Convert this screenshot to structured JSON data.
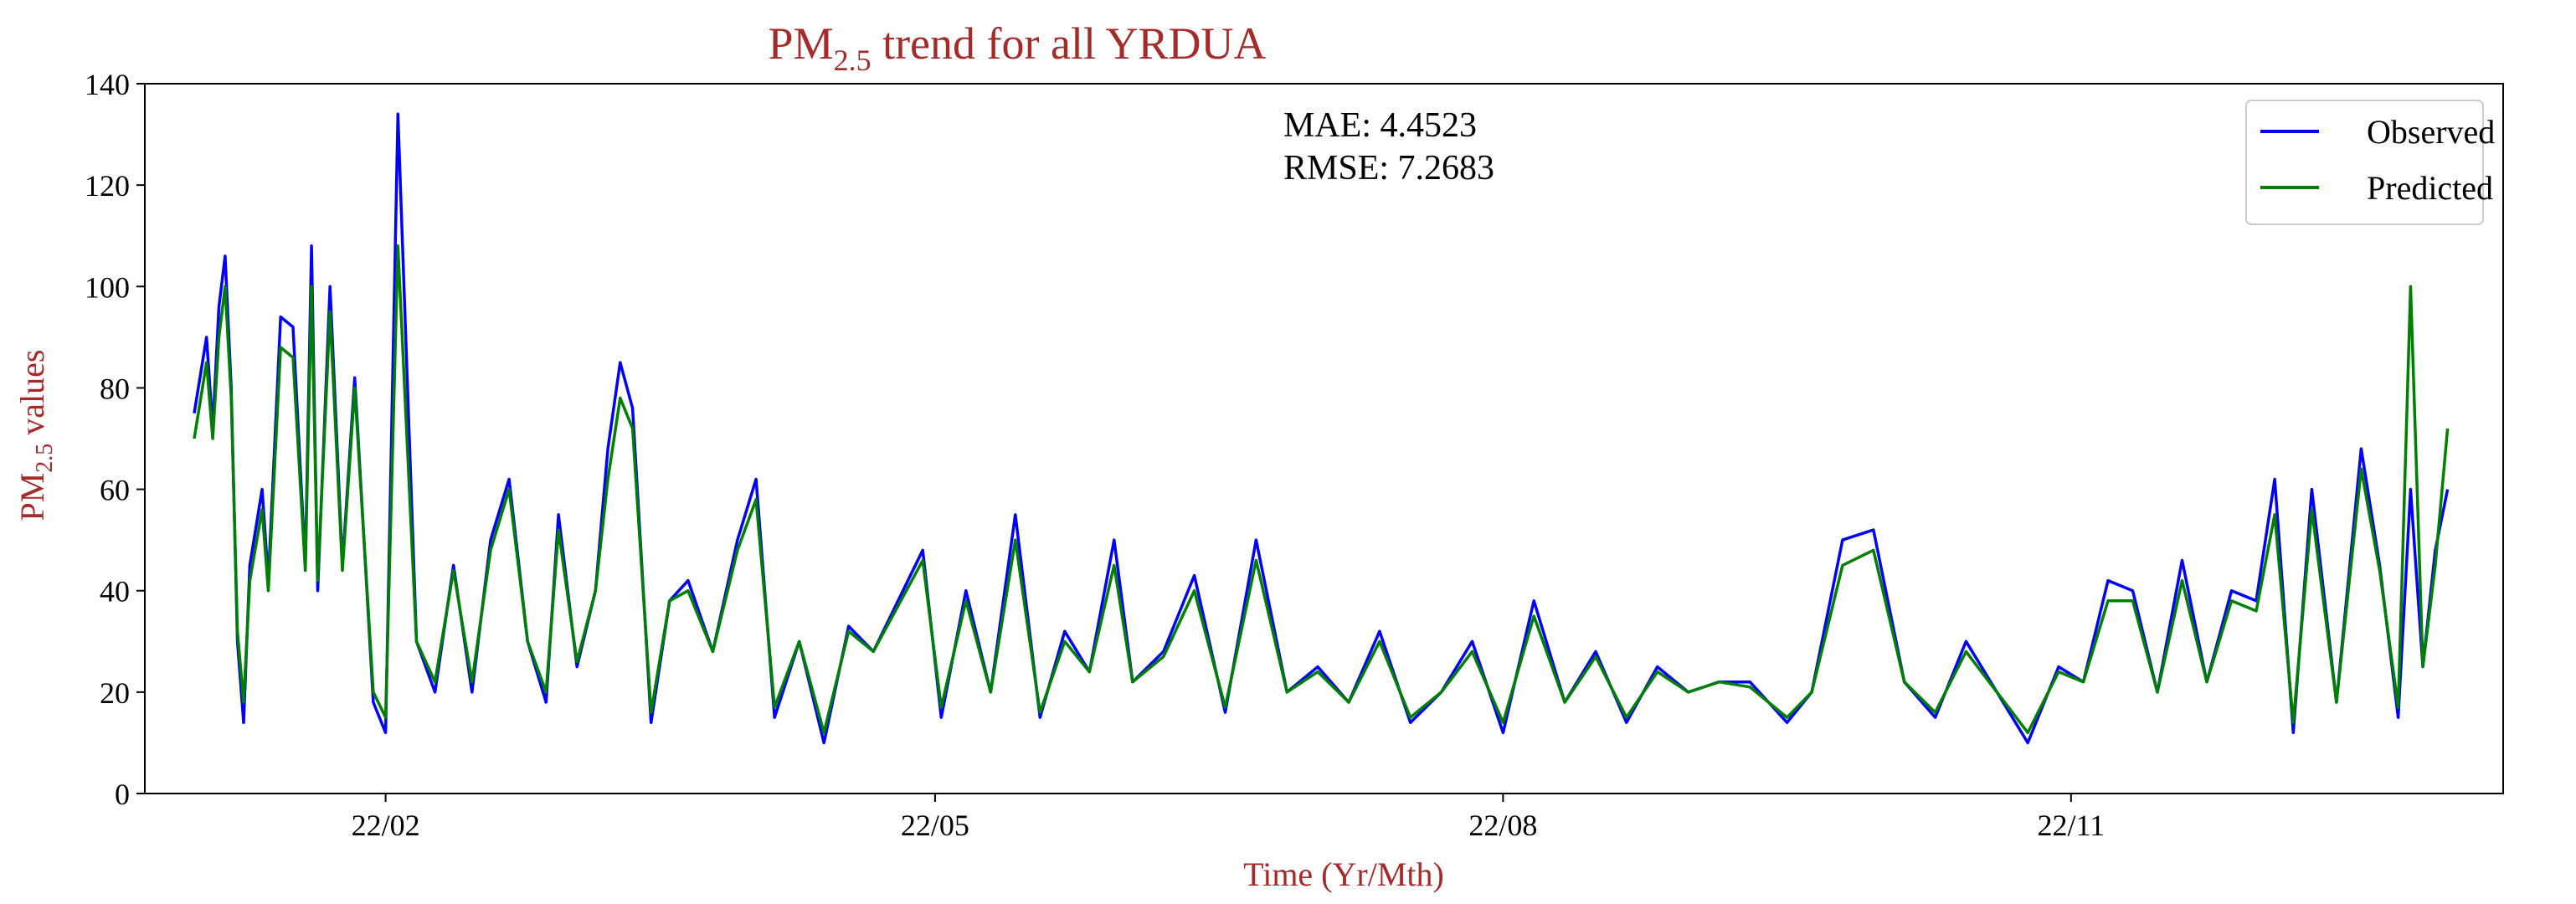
{
  "chart_data": {
    "type": "line",
    "title": {
      "main": "PM",
      "sub": "2.5",
      "rest": " trend for all YRDUA"
    },
    "xlabel": "Time (Yr/Mth)",
    "ylabel": {
      "main": "PM",
      "sub": "2.5",
      "rest": " values"
    },
    "x_range": [
      "2021-12-24",
      "2023-01-10"
    ],
    "ylim": [
      0,
      140
    ],
    "x_ticks": [
      {
        "date": "2022-02-01",
        "label": "22/02"
      },
      {
        "date": "2022-05-01",
        "label": "22/05"
      },
      {
        "date": "2022-08-01",
        "label": "22/08"
      },
      {
        "date": "2022-11-01",
        "label": "22/11"
      }
    ],
    "y_ticks": [
      0,
      20,
      40,
      60,
      80,
      100,
      120,
      140
    ],
    "grid": false,
    "legend_position": "top-right",
    "annotations": [
      "MAE: 4.4523",
      "RMSE: 7.2683"
    ],
    "colors": {
      "observed": "#0000ff",
      "predicted": "#008000",
      "label_color": "#a52a2a"
    },
    "series": [
      {
        "name": "Observed",
        "x": [
          "2022-01-01",
          "2022-01-03",
          "2022-01-04",
          "2022-01-05",
          "2022-01-06",
          "2022-01-07",
          "2022-01-08",
          "2022-01-09",
          "2022-01-10",
          "2022-01-12",
          "2022-01-13",
          "2022-01-15",
          "2022-01-17",
          "2022-01-19",
          "2022-01-20",
          "2022-01-21",
          "2022-01-23",
          "2022-01-25",
          "2022-01-27",
          "2022-01-30",
          "2022-02-01",
          "2022-02-03",
          "2022-02-06",
          "2022-02-09",
          "2022-02-12",
          "2022-02-15",
          "2022-02-18",
          "2022-02-21",
          "2022-02-24",
          "2022-02-27",
          "2022-03-01",
          "2022-03-04",
          "2022-03-07",
          "2022-03-09",
          "2022-03-11",
          "2022-03-13",
          "2022-03-16",
          "2022-03-19",
          "2022-03-22",
          "2022-03-26",
          "2022-03-30",
          "2022-04-02",
          "2022-04-05",
          "2022-04-09",
          "2022-04-13",
          "2022-04-17",
          "2022-04-21",
          "2022-04-25",
          "2022-04-29",
          "2022-05-02",
          "2022-05-06",
          "2022-05-10",
          "2022-05-14",
          "2022-05-18",
          "2022-05-22",
          "2022-05-26",
          "2022-05-30",
          "2022-06-02",
          "2022-06-07",
          "2022-06-12",
          "2022-06-17",
          "2022-06-22",
          "2022-06-27",
          "2022-07-02",
          "2022-07-07",
          "2022-07-12",
          "2022-07-17",
          "2022-07-22",
          "2022-07-27",
          "2022-08-01",
          "2022-08-06",
          "2022-08-11",
          "2022-08-16",
          "2022-08-21",
          "2022-08-26",
          "2022-08-31",
          "2022-09-05",
          "2022-09-10",
          "2022-09-13",
          "2022-09-16",
          "2022-09-20",
          "2022-09-25",
          "2022-09-30",
          "2022-10-05",
          "2022-10-10",
          "2022-10-15",
          "2022-10-20",
          "2022-10-25",
          "2022-10-30",
          "2022-11-03",
          "2022-11-07",
          "2022-11-11",
          "2022-11-15",
          "2022-11-19",
          "2022-11-23",
          "2022-11-27",
          "2022-12-01",
          "2022-12-04",
          "2022-12-07",
          "2022-12-10",
          "2022-12-14",
          "2022-12-18",
          "2022-12-21",
          "2022-12-24",
          "2022-12-26",
          "2022-12-28",
          "2022-12-30",
          "2023-01-01"
        ],
        "y": [
          75,
          90,
          72,
          96,
          106,
          80,
          30,
          14,
          45,
          60,
          42,
          94,
          92,
          45,
          108,
          40,
          100,
          45,
          82,
          18,
          12,
          134,
          30,
          20,
          45,
          20,
          50,
          62,
          30,
          18,
          55,
          25,
          40,
          68,
          85,
          76,
          14,
          38,
          42,
          28,
          50,
          62,
          15,
          30,
          10,
          33,
          28,
          38,
          48,
          15,
          40,
          20,
          55,
          15,
          32,
          24,
          50,
          22,
          28,
          43,
          16,
          50,
          20,
          25,
          18,
          32,
          14,
          20,
          30,
          12,
          38,
          18,
          28,
          14,
          25,
          20,
          22,
          22,
          18,
          14,
          20,
          50,
          52,
          22,
          15,
          30,
          20,
          10,
          25,
          22,
          42,
          40,
          20,
          46,
          22,
          40,
          38,
          62,
          12,
          60,
          18,
          68,
          45,
          15,
          60,
          25,
          48,
          60
        ]
      },
      {
        "name": "Predicted",
        "x": [
          "2022-01-01",
          "2022-01-03",
          "2022-01-04",
          "2022-01-05",
          "2022-01-06",
          "2022-01-07",
          "2022-01-08",
          "2022-01-09",
          "2022-01-10",
          "2022-01-12",
          "2022-01-13",
          "2022-01-15",
          "2022-01-17",
          "2022-01-19",
          "2022-01-20",
          "2022-01-21",
          "2022-01-23",
          "2022-01-25",
          "2022-01-27",
          "2022-01-30",
          "2022-02-01",
          "2022-02-03",
          "2022-02-06",
          "2022-02-09",
          "2022-02-12",
          "2022-02-15",
          "2022-02-18",
          "2022-02-21",
          "2022-02-24",
          "2022-02-27",
          "2022-03-01",
          "2022-03-04",
          "2022-03-07",
          "2022-03-09",
          "2022-03-11",
          "2022-03-13",
          "2022-03-16",
          "2022-03-19",
          "2022-03-22",
          "2022-03-26",
          "2022-03-30",
          "2022-04-02",
          "2022-04-05",
          "2022-04-09",
          "2022-04-13",
          "2022-04-17",
          "2022-04-21",
          "2022-04-25",
          "2022-04-29",
          "2022-05-02",
          "2022-05-06",
          "2022-05-10",
          "2022-05-14",
          "2022-05-18",
          "2022-05-22",
          "2022-05-26",
          "2022-05-30",
          "2022-06-02",
          "2022-06-07",
          "2022-06-12",
          "2022-06-17",
          "2022-06-22",
          "2022-06-27",
          "2022-07-02",
          "2022-07-07",
          "2022-07-12",
          "2022-07-17",
          "2022-07-22",
          "2022-07-27",
          "2022-08-01",
          "2022-08-06",
          "2022-08-11",
          "2022-08-16",
          "2022-08-21",
          "2022-08-26",
          "2022-08-31",
          "2022-09-05",
          "2022-09-10",
          "2022-09-13",
          "2022-09-16",
          "2022-09-20",
          "2022-09-25",
          "2022-09-30",
          "2022-10-05",
          "2022-10-10",
          "2022-10-15",
          "2022-10-20",
          "2022-10-25",
          "2022-10-30",
          "2022-11-03",
          "2022-11-07",
          "2022-11-11",
          "2022-11-15",
          "2022-11-19",
          "2022-11-23",
          "2022-11-27",
          "2022-12-01",
          "2022-12-04",
          "2022-12-07",
          "2022-12-10",
          "2022-12-14",
          "2022-12-18",
          "2022-12-21",
          "2022-12-24",
          "2022-12-26",
          "2022-12-28",
          "2022-12-30",
          "2023-01-01"
        ],
        "y": [
          70,
          85,
          70,
          90,
          100,
          78,
          32,
          18,
          42,
          56,
          40,
          88,
          86,
          44,
          100,
          42,
          95,
          44,
          80,
          20,
          15,
          108,
          30,
          22,
          44,
          22,
          48,
          60,
          30,
          20,
          52,
          26,
          40,
          62,
          78,
          72,
          16,
          38,
          40,
          28,
          48,
          58,
          17,
          30,
          12,
          32,
          28,
          37,
          46,
          17,
          38,
          20,
          50,
          16,
          30,
          24,
          45,
          22,
          27,
          40,
          17,
          46,
          20,
          24,
          18,
          30,
          15,
          20,
          28,
          14,
          35,
          18,
          27,
          15,
          24,
          20,
          22,
          21,
          18,
          15,
          20,
          45,
          48,
          22,
          16,
          28,
          20,
          12,
          24,
          22,
          38,
          38,
          20,
          42,
          22,
          38,
          36,
          55,
          14,
          56,
          18,
          64,
          44,
          17,
          100,
          25,
          45,
          72
        ]
      }
    ]
  }
}
